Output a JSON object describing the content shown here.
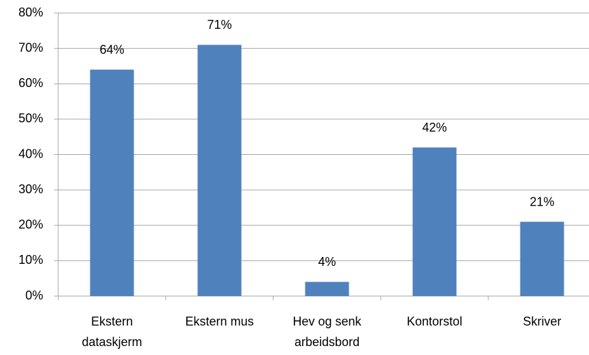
{
  "chart_data": {
    "type": "bar",
    "categories": [
      "Ekstern dataskjerm",
      "Ekstern mus",
      "Hev og senk arbeidsbord",
      "Kontorstol",
      "Skriver"
    ],
    "values": [
      64,
      71,
      4,
      42,
      21
    ],
    "value_labels": [
      "64%",
      "71%",
      "4%",
      "42%",
      "21%"
    ],
    "color": "#4f81bd",
    "ylim": [
      0,
      80
    ],
    "yticks": [
      {
        "value": 0,
        "label": "0%"
      },
      {
        "value": 10,
        "label": "10%"
      },
      {
        "value": 20,
        "label": "20%"
      },
      {
        "value": 30,
        "label": "30%"
      },
      {
        "value": 40,
        "label": "40%"
      },
      {
        "value": 50,
        "label": "50%"
      },
      {
        "value": 60,
        "label": "60%"
      },
      {
        "value": 70,
        "label": "70%"
      },
      {
        "value": 80,
        "label": "80%"
      }
    ],
    "grid": true
  }
}
